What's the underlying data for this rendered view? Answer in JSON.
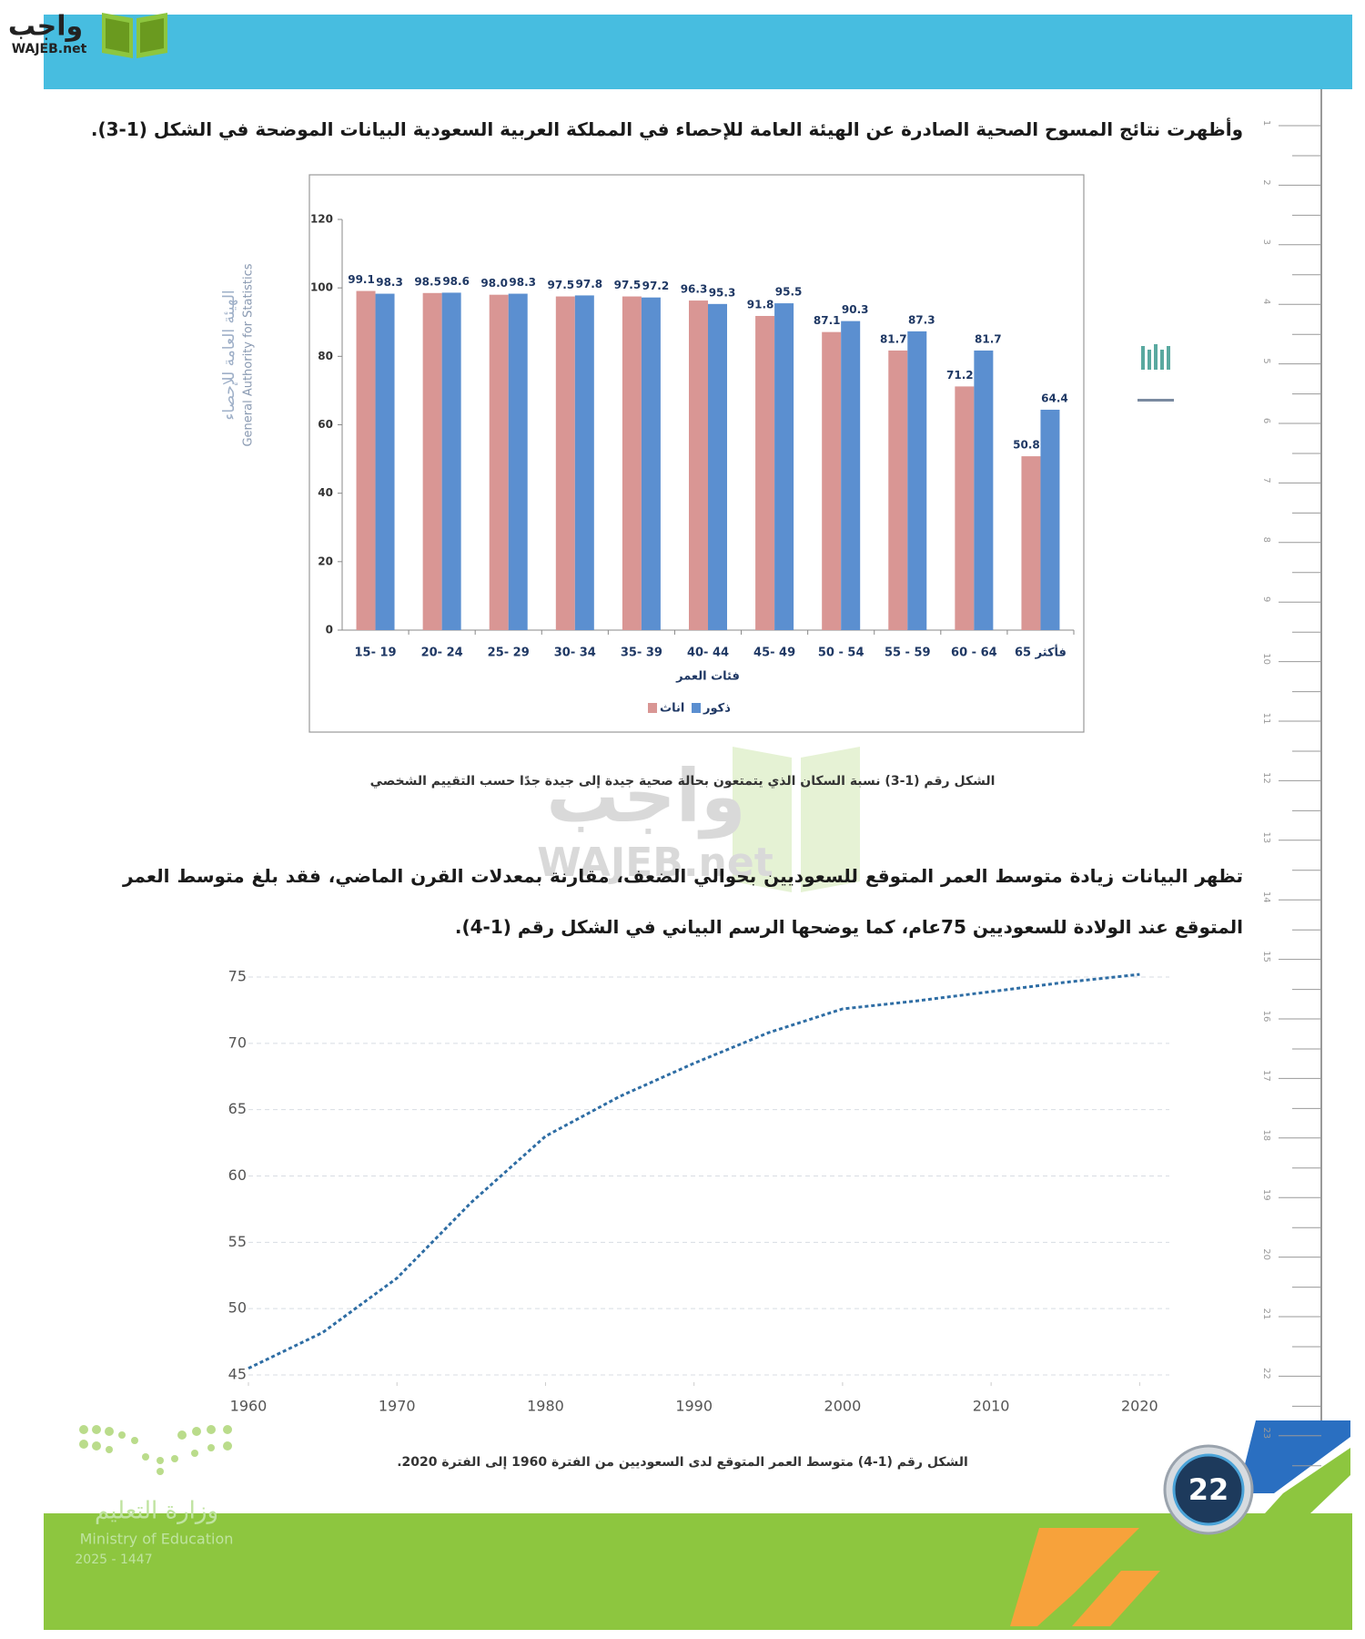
{
  "header": {
    "logo_ar": "واجب",
    "logo_en": "WAJEB.net"
  },
  "paragraphs": [
    "وأظهرت نتائج المسوح الصحية الصادرة عن الهيئة العامة للإحصاء في المملكة العربية السعودية البيانات الموضحة في الشكل (1-3).",
    "تظهر البيانات زيادة متوسط العمر المتوقع للسعوديين بحوالي الضعف، مقارنة بمعدلات القرن الماضي، فقد بلغ متوسط العمر المتوقع عند الولادة للسعوديين 75عام، كما يوضحها الرسم البياني في الشكل رقم (1-4)."
  ],
  "side_logo": {
    "ar": "الهيئة العامة للإحصاء",
    "en": "General Authority for Statistics"
  },
  "chart_data": [
    {
      "type": "bar",
      "x_label": "فئات العمر",
      "categories": [
        "15- 19",
        "20- 24",
        "25- 29",
        "30- 34",
        "35- 39",
        "40- 44",
        "45- 49",
        "50 - 54",
        "55 - 59",
        "60 - 64",
        "65 فأكثر"
      ],
      "series": [
        {
          "name": "اناث",
          "color": "#d99694",
          "values": [
            99.1,
            98.5,
            98.0,
            97.5,
            97.5,
            96.3,
            91.8,
            87.1,
            81.7,
            71.2,
            50.8
          ],
          "value_labels": [
            "99.1",
            "98.5",
            "98.0",
            "97.5",
            "97.5",
            "96.3",
            "91.8",
            "87.1",
            "81.7",
            "71.2",
            "50.8"
          ]
        },
        {
          "name": "ذكور",
          "color": "#5b8fd0",
          "values": [
            98.3,
            98.6,
            98.3,
            97.8,
            97.2,
            95.3,
            95.5,
            90.3,
            87.3,
            81.7,
            64.4
          ],
          "value_labels": [
            "98.3",
            "98.6",
            "98.3",
            "97.8",
            "97.2",
            "95.3",
            "95.5",
            "90.3",
            "87.3",
            "81.7",
            "64.4"
          ]
        }
      ],
      "ylim": [
        0,
        120
      ],
      "yticks": [
        0,
        20,
        40,
        60,
        80,
        100,
        120
      ]
    },
    {
      "type": "line",
      "color": "#2e6da4",
      "x": [
        1960,
        1965,
        1970,
        1975,
        1980,
        1985,
        1990,
        1995,
        2000,
        2005,
        2010,
        2015,
        2020
      ],
      "values": [
        45.5,
        48.2,
        52.3,
        58.0,
        63.0,
        66.0,
        68.5,
        70.8,
        72.6,
        73.2,
        73.9,
        74.6,
        75.2
      ],
      "xlim": [
        1960,
        2022
      ],
      "xticks": [
        1960,
        1970,
        1980,
        1990,
        2000,
        2010,
        2020
      ],
      "ylim": [
        45,
        75
      ],
      "yticks": [
        45,
        50,
        55,
        60,
        65,
        70,
        75
      ],
      "grid": true
    }
  ],
  "captions": [
    "الشكل رقم (1-3) نسبة السكان الذي يتمتعون بحالة صحية جيدة إلى جيدة جدًا حسب التقييم الشخصي",
    "الشكل رقم (1-4) متوسط العمر المتوقع لدى السعوديين من الفترة 1960 إلى الفترة 2020."
  ],
  "watermark": {
    "ar": "واجب",
    "en": "WAJEB.net"
  },
  "ministry": {
    "ar": "وزارة التعليم",
    "en": "Ministry of Education",
    "years": "2025 - 1447"
  },
  "page_number": 22,
  "ruler": [
    1,
    2,
    3,
    4,
    5,
    6,
    7,
    8,
    9,
    10,
    11,
    12,
    13,
    14,
    15,
    16,
    17,
    18,
    19,
    20,
    21,
    22,
    23
  ]
}
